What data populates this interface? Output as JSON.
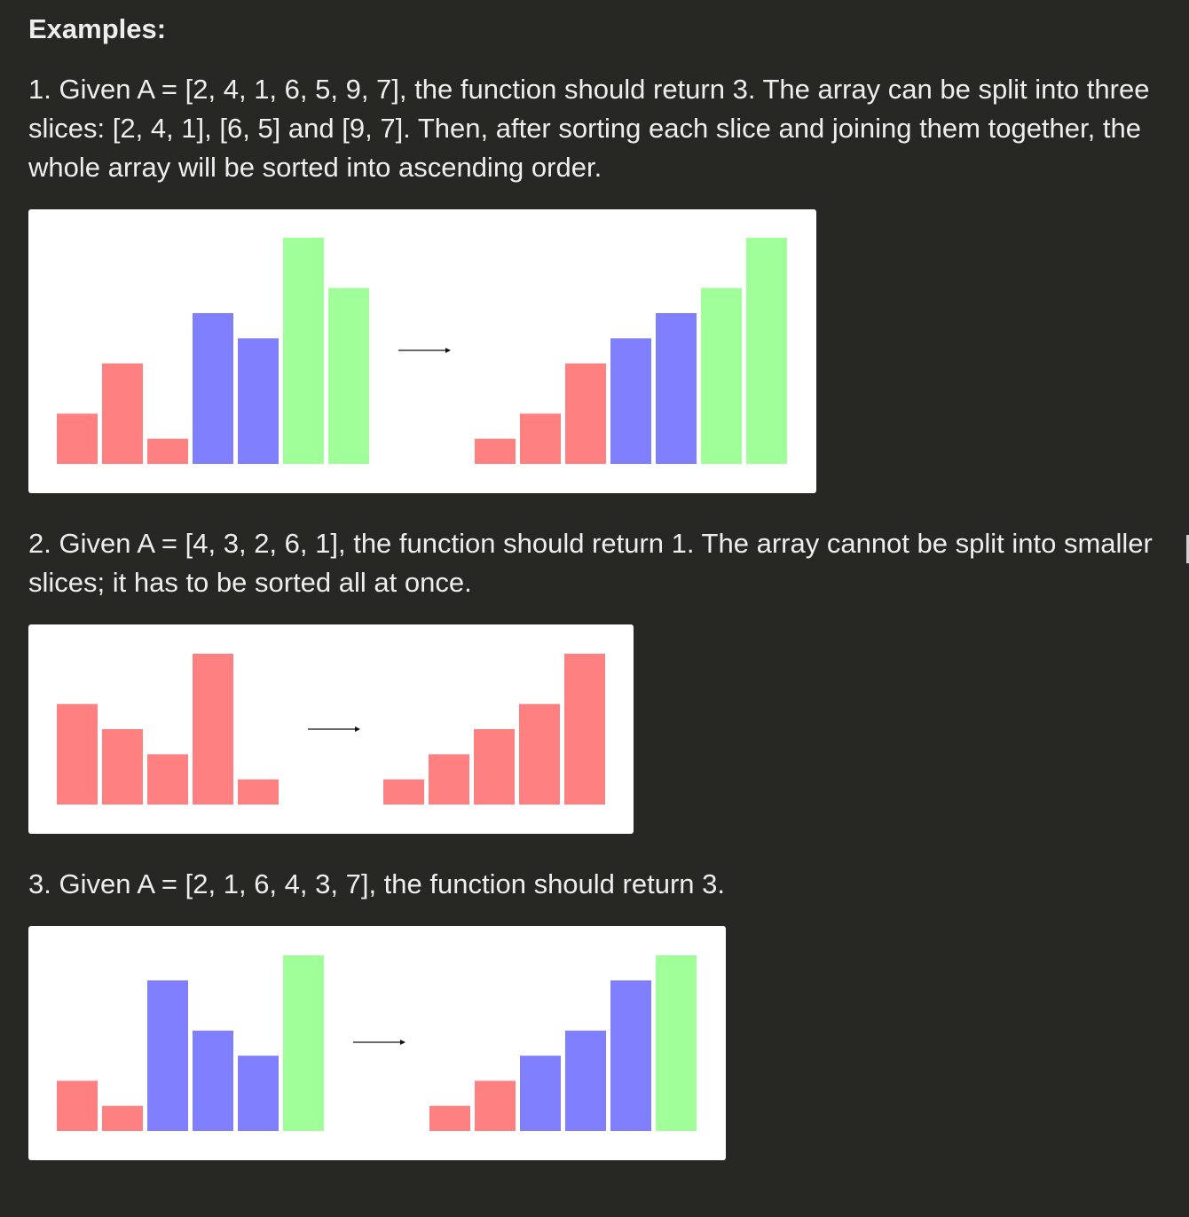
{
  "heading": "Examples:",
  "examples": [
    {
      "text": "1. Given A = [2, 4, 1, 6, 5, 9, 7], the function should return 3. The array can be split into three slices: [2, 4, 1], [6, 5] and [9, 7]. Then, after sorting each slice and joining them together, the whole array will be sorted into ascending order."
    },
    {
      "text": "2. Given A = [4, 3, 2, 6, 1], the function should return 1. The array cannot be split into smaller slices; it has to be sorted all at once."
    },
    {
      "text": "3. Given A = [2, 1, 6, 4, 3, 7], the function should return 3."
    }
  ],
  "colors": {
    "red": "#ff8080",
    "blue": "#8080ff",
    "green": "#a0ff98",
    "arrow": "#111111"
  },
  "chart_data": [
    {
      "type": "bar",
      "before": {
        "values": [
          2,
          4,
          1,
          6,
          5,
          9,
          7
        ],
        "groups": [
          0,
          0,
          0,
          1,
          1,
          2,
          2
        ]
      },
      "after": {
        "values": [
          1,
          2,
          4,
          5,
          6,
          7,
          9
        ],
        "groups": [
          0,
          0,
          0,
          1,
          1,
          2,
          2
        ]
      },
      "ylim": [
        0,
        9
      ]
    },
    {
      "type": "bar",
      "before": {
        "values": [
          4,
          3,
          2,
          6,
          1
        ],
        "groups": [
          0,
          0,
          0,
          0,
          0
        ]
      },
      "after": {
        "values": [
          1,
          2,
          3,
          4,
          6
        ],
        "groups": [
          0,
          0,
          0,
          0,
          0
        ]
      },
      "ylim": [
        0,
        6
      ]
    },
    {
      "type": "bar",
      "before": {
        "values": [
          2,
          1,
          6,
          4,
          3,
          7
        ],
        "groups": [
          0,
          0,
          1,
          1,
          1,
          2
        ]
      },
      "after": {
        "values": [
          1,
          2,
          3,
          4,
          6,
          7
        ],
        "groups": [
          0,
          0,
          1,
          1,
          1,
          2
        ]
      },
      "ylim": [
        0,
        7
      ]
    }
  ]
}
